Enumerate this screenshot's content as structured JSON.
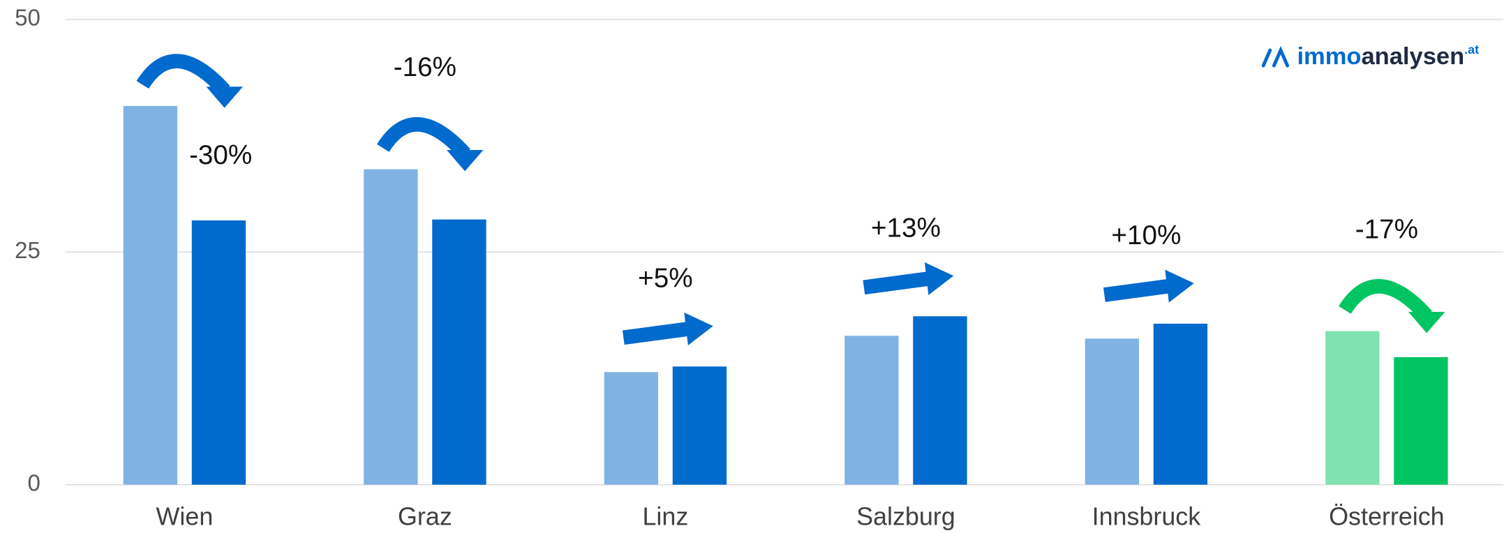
{
  "chart_data": {
    "type": "bar",
    "categories": [
      "Wien",
      "Graz",
      "Linz",
      "Salzburg",
      "Innsbruck",
      "Österreich"
    ],
    "series": [
      {
        "values": [
          40.7,
          33.9,
          12.1,
          16.0,
          15.7,
          16.5
        ],
        "colors": [
          "#80b3e4",
          "#80b3e4",
          "#80b3e4",
          "#80b3e4",
          "#80b3e4",
          "#80e2b0"
        ]
      },
      {
        "values": [
          28.4,
          28.5,
          12.7,
          18.1,
          17.3,
          13.7
        ],
        "colors": [
          "#006acd",
          "#006acd",
          "#006acd",
          "#006acd",
          "#006acd",
          "#00c561"
        ]
      }
    ],
    "annotations": [
      "-30%",
      "-16%",
      "+5%",
      "+13%",
      "+10%",
      "-17%"
    ],
    "ylim": [
      0,
      50
    ],
    "yticks": [
      0,
      25,
      50
    ],
    "grid": true,
    "logo": {
      "brand": "immo",
      "rest": "analysen",
      "suffix": ".at"
    }
  }
}
